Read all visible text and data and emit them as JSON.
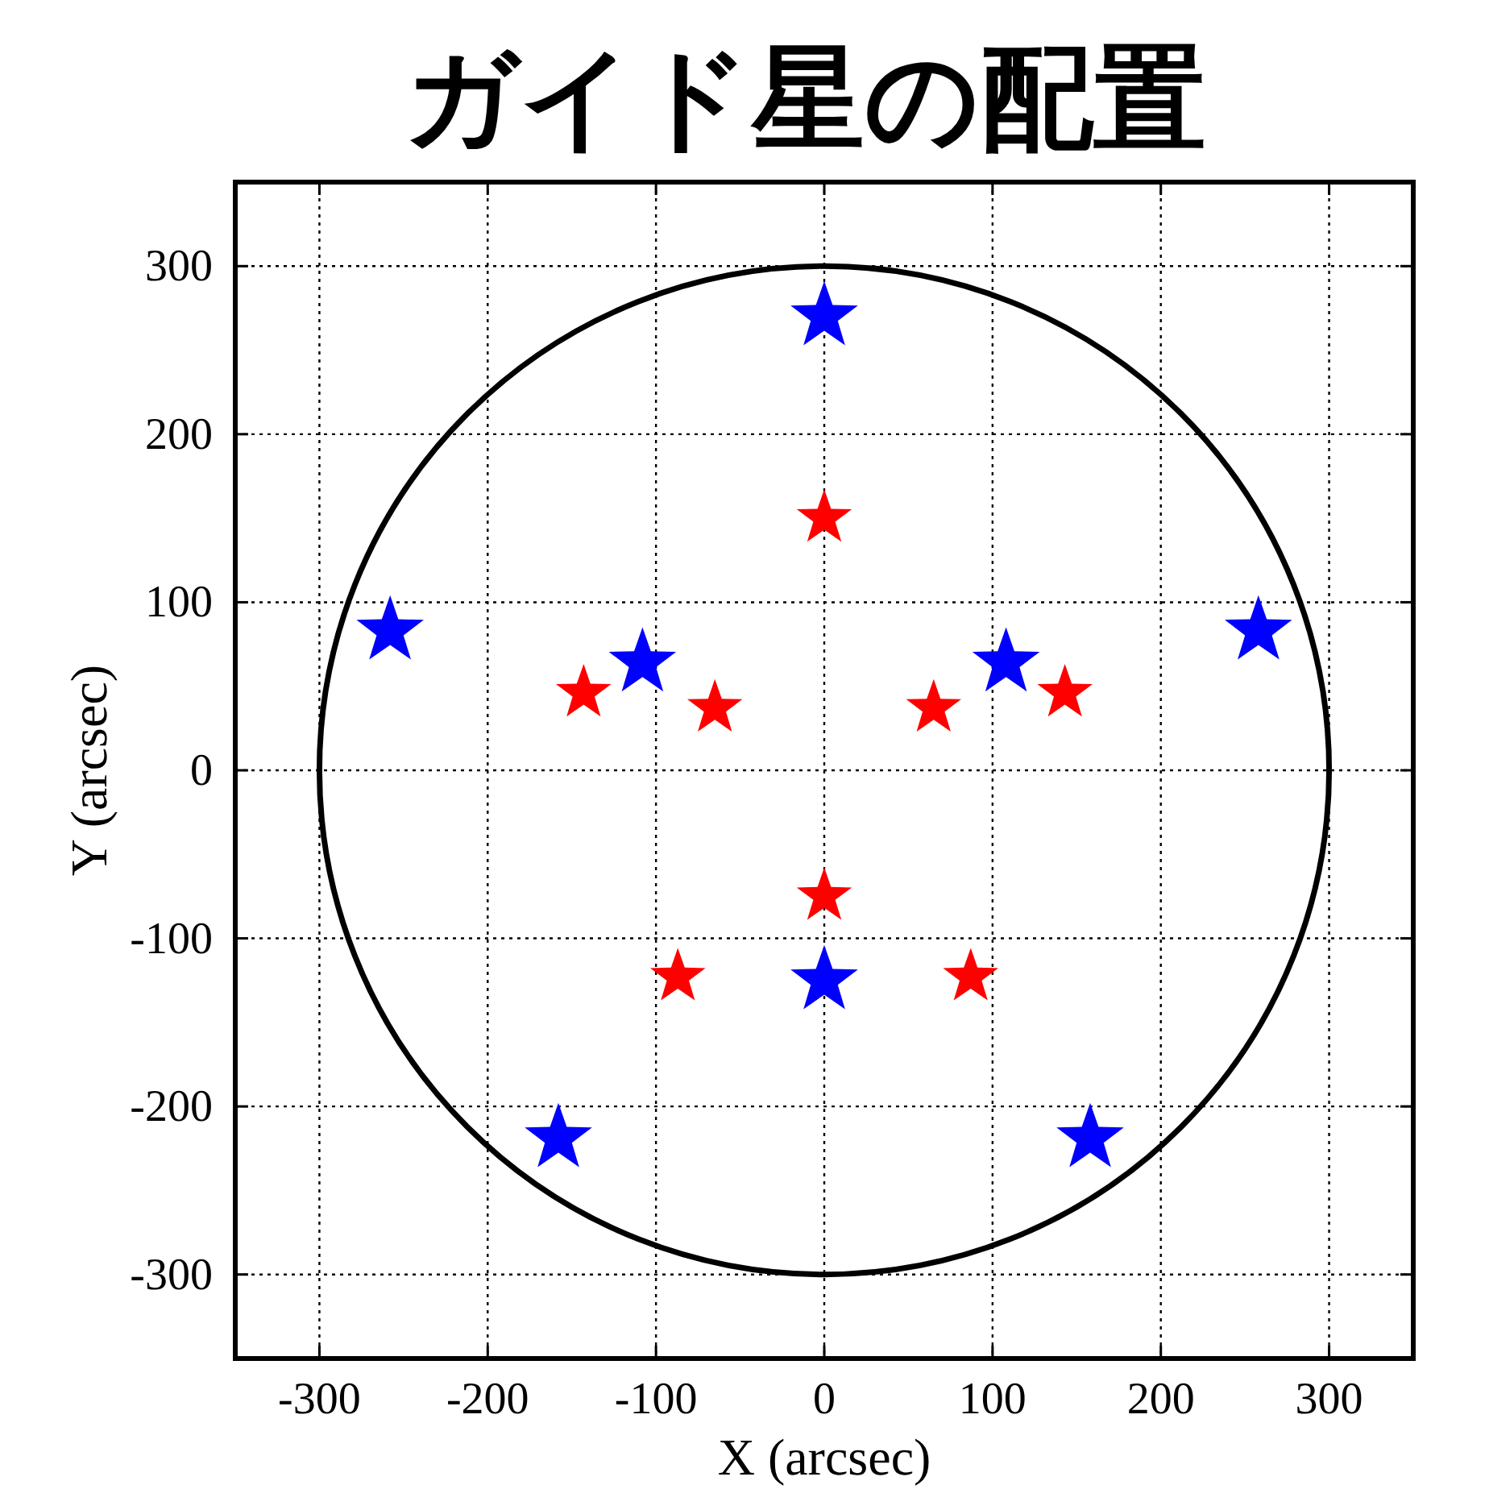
{
  "chart_data": {
    "type": "scatter",
    "title": "ガイド星の配置",
    "xlabel": "X (arcsec)",
    "ylabel": "Y (arcsec)",
    "xlim": [
      -350,
      350
    ],
    "ylim": [
      -350,
      350
    ],
    "xticks": [
      -300,
      -200,
      -100,
      0,
      100,
      200,
      300
    ],
    "yticks": [
      -300,
      -200,
      -100,
      0,
      100,
      200,
      300
    ],
    "grid": true,
    "marker": "star",
    "series": [
      {
        "color": "#0000ff",
        "x": [
          0,
          -258,
          -108,
          108,
          258,
          0,
          -158,
          158
        ],
        "values": [
          270,
          83,
          64,
          64,
          83,
          -125,
          -219,
          -219
        ]
      },
      {
        "color": "#ff0000",
        "x": [
          0,
          -143,
          -65,
          65,
          143,
          0,
          -87,
          87
        ],
        "values": [
          150,
          46,
          37,
          37,
          46,
          -75,
          -123,
          -123
        ]
      }
    ]
  }
}
